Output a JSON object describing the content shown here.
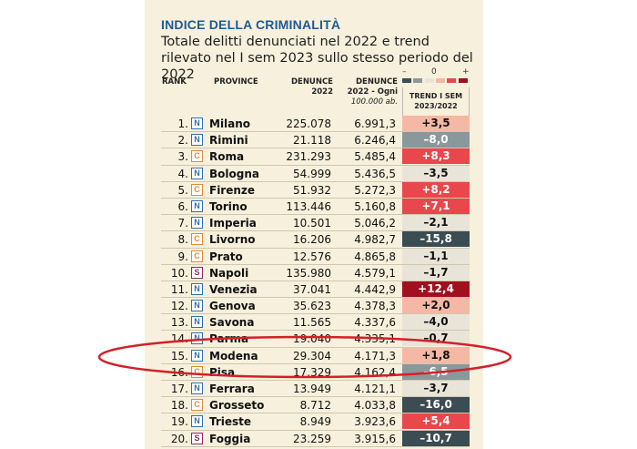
{
  "title": "INDICE DELLA CRIMINALITÀ",
  "subtitle": "Totale delitti denunciati nel 2022 e trend rilevato nel I sem 2023 sullo stesso periodo del 2022",
  "legend": {
    "minus": "–",
    "zero": "0",
    "plus": "+",
    "colors": [
      "#3b4c52",
      "#8a979b",
      "#e9e4d8",
      "#f4b8a4",
      "#e8474b",
      "#a1101f"
    ]
  },
  "headers": {
    "rank": "RANK",
    "province": "PROVINCE",
    "denunce_1": "DENUNCE",
    "denunce_2": "2022",
    "per_1": "DENUNCE",
    "per_2": "2022 - Ogni",
    "per_3": "100.000 ab.",
    "trend_1": "TREND I SEM",
    "trend_2": "2023/2022"
  },
  "colors": {
    "strong_pos": "#a1101f",
    "pos": "#e8474b",
    "light_pos": "#f4b8a4",
    "neutral": "#e9e4d8",
    "neg": "#8a979b",
    "strong_neg": "#3b4c52",
    "annotation": "#d42027"
  },
  "rows": [
    {
      "rank": "1.",
      "type": "N",
      "name": "Milano",
      "denunce": "225.078",
      "per100k": "6.991,3",
      "trend": "+3,5",
      "trend_value": 3.5
    },
    {
      "rank": "2.",
      "type": "N",
      "name": "Rimini",
      "denunce": "21.118",
      "per100k": "6.246,4",
      "trend": "–8,0",
      "trend_value": -8.0
    },
    {
      "rank": "3.",
      "type": "C",
      "name": "Roma",
      "denunce": "231.293",
      "per100k": "5.485,4",
      "trend": "+8,3",
      "trend_value": 8.3
    },
    {
      "rank": "4.",
      "type": "N",
      "name": "Bologna",
      "denunce": "54.999",
      "per100k": "5.436,5",
      "trend": "–3,5",
      "trend_value": -3.5
    },
    {
      "rank": "5.",
      "type": "C",
      "name": "Firenze",
      "denunce": "51.932",
      "per100k": "5.272,3",
      "trend": "+8,2",
      "trend_value": 8.2
    },
    {
      "rank": "6.",
      "type": "N",
      "name": "Torino",
      "denunce": "113.446",
      "per100k": "5.160,8",
      "trend": "+7,1",
      "trend_value": 7.1
    },
    {
      "rank": "7.",
      "type": "N",
      "name": "Imperia",
      "denunce": "10.501",
      "per100k": "5.046,2",
      "trend": "–2,1",
      "trend_value": -2.1
    },
    {
      "rank": "8.",
      "type": "C",
      "name": "Livorno",
      "denunce": "16.206",
      "per100k": "4.982,7",
      "trend": "–15,8",
      "trend_value": -15.8
    },
    {
      "rank": "9.",
      "type": "C",
      "name": "Prato",
      "denunce": "12.576",
      "per100k": "4.865,8",
      "trend": "–1,1",
      "trend_value": -1.1
    },
    {
      "rank": "10.",
      "type": "S",
      "name": "Napoli",
      "denunce": "135.980",
      "per100k": "4.579,1",
      "trend": "–1,7",
      "trend_value": -1.7
    },
    {
      "rank": "11.",
      "type": "N",
      "name": "Venezia",
      "denunce": "37.041",
      "per100k": "4.442,9",
      "trend": "+12,4",
      "trend_value": 12.4
    },
    {
      "rank": "12.",
      "type": "N",
      "name": "Genova",
      "denunce": "35.623",
      "per100k": "4.378,3",
      "trend": "+2,0",
      "trend_value": 2.0
    },
    {
      "rank": "13.",
      "type": "N",
      "name": "Savona",
      "denunce": "11.565",
      "per100k": "4.337,6",
      "trend": "–4,0",
      "trend_value": -4.0
    },
    {
      "rank": "14.",
      "type": "N",
      "name": "Parma",
      "denunce": "19.040",
      "per100k": "4.335,1",
      "trend": "–0,7",
      "trend_value": -0.7
    },
    {
      "rank": "15.",
      "type": "N",
      "name": "Modena",
      "denunce": "29.304",
      "per100k": "4.171,3",
      "trend": "+1,8",
      "trend_value": 1.8
    },
    {
      "rank": "16.",
      "type": "C",
      "name": "Pisa",
      "denunce": "17.329",
      "per100k": "4.162,4",
      "trend": "–6,5",
      "trend_value": -6.5
    },
    {
      "rank": "17.",
      "type": "N",
      "name": "Ferrara",
      "denunce": "13.949",
      "per100k": "4.121,1",
      "trend": "–3,7",
      "trend_value": -3.7
    },
    {
      "rank": "18.",
      "type": "C",
      "name": "Grosseto",
      "denunce": "8.712",
      "per100k": "4.033,8",
      "trend": "–16,0",
      "trend_value": -16.0
    },
    {
      "rank": "19.",
      "type": "N",
      "name": "Trieste",
      "denunce": "8.949",
      "per100k": "3.923,6",
      "trend": "+5,4",
      "trend_value": 5.4
    },
    {
      "rank": "20.",
      "type": "S",
      "name": "Foggia",
      "denunce": "23.259",
      "per100k": "3.915,6",
      "trend": "–10,7",
      "trend_value": -10.7
    }
  ]
}
